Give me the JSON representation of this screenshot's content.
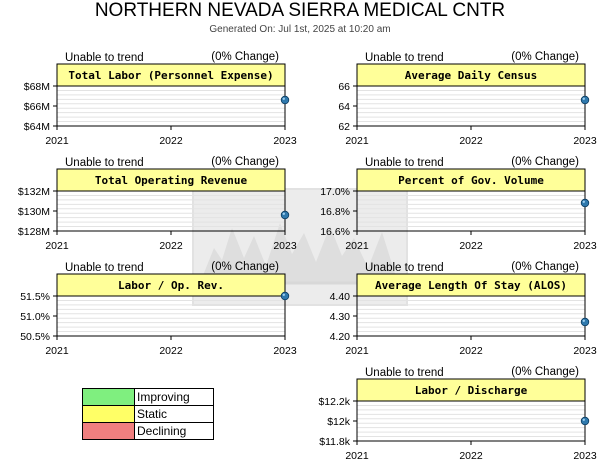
{
  "report": {
    "title": "NORTHERN NEVADA SIERRA MEDICAL CNTR",
    "subtitle": "Generated On: Jul 1st, 2025 at 10:20 am"
  },
  "colors": {
    "panel_fill": "#ffff99",
    "improving": "#7fef7f",
    "static": "#ffff66",
    "declining": "#f07f7f",
    "marker": "#2f79ad"
  },
  "legend": [
    {
      "label": "Improving",
      "color": "#7fef7f"
    },
    {
      "label": "Static",
      "color": "#ffff66"
    },
    {
      "label": "Declining",
      "color": "#f07f7f"
    }
  ],
  "chart_data": [
    {
      "type": "scatter",
      "title": "Total Labor (Personnel Expense)",
      "trend_label": "Unable to trend",
      "change_label": "(0% Change)",
      "x_ticks": [
        "2021",
        "2022",
        "2023"
      ],
      "y_ticks": [
        "$68M",
        "$66M",
        "$64M"
      ],
      "ylim": [
        64,
        68
      ],
      "y_unit": "$M",
      "points": [
        {
          "x": "2023",
          "y": 66.6
        }
      ],
      "grid": true
    },
    {
      "type": "scatter",
      "title": "Average Daily Census",
      "trend_label": "Unable to trend",
      "change_label": "(0% Change)",
      "x_ticks": [
        "2021",
        "2022",
        "2023"
      ],
      "y_ticks": [
        "66",
        "64",
        "62"
      ],
      "ylim": [
        62,
        66
      ],
      "points": [
        {
          "x": "2023",
          "y": 64.6
        }
      ],
      "grid": true
    },
    {
      "type": "scatter",
      "title": "Total Operating Revenue",
      "trend_label": "Unable to trend",
      "change_label": "(0% Change)",
      "x_ticks": [
        "2021",
        "2022",
        "2023"
      ],
      "y_ticks": [
        "$132M",
        "$130M",
        "$128M"
      ],
      "ylim": [
        128,
        132
      ],
      "y_unit": "$M",
      "points": [
        {
          "x": "2023",
          "y": 129.6
        }
      ],
      "grid": true
    },
    {
      "type": "scatter",
      "title": "Percent of Gov. Volume",
      "trend_label": "Unable to trend",
      "change_label": "(0% Change)",
      "x_ticks": [
        "2021",
        "2022",
        "2023"
      ],
      "y_ticks": [
        "17.0%",
        "16.8%",
        "16.6%"
      ],
      "ylim": [
        16.6,
        17.0
      ],
      "y_unit": "%",
      "points": [
        {
          "x": "2023",
          "y": 16.88
        }
      ],
      "grid": true
    },
    {
      "type": "scatter",
      "title": "Labor / Op. Rev.",
      "trend_label": "Unable to trend",
      "change_label": "(0% Change)",
      "x_ticks": [
        "2021",
        "2022",
        "2023"
      ],
      "y_ticks": [
        "51.5%",
        "51.0%",
        "50.5%"
      ],
      "ylim": [
        50.5,
        51.5
      ],
      "y_unit": "%",
      "points": [
        {
          "x": "2023",
          "y": 51.5
        }
      ],
      "grid": true
    },
    {
      "type": "scatter",
      "title": "Average Length Of Stay (ALOS)",
      "trend_label": "Unable to trend",
      "change_label": "(0% Change)",
      "x_ticks": [
        "2021",
        "2022",
        "2023"
      ],
      "y_ticks": [
        "4.40",
        "4.30",
        "4.20"
      ],
      "ylim": [
        4.2,
        4.4
      ],
      "points": [
        {
          "x": "2023",
          "y": 4.27
        }
      ],
      "grid": true
    },
    {
      "type": "scatter",
      "title": "Labor / Discharge",
      "trend_label": "Unable to trend",
      "change_label": "(0% Change)",
      "x_ticks": [
        "2021",
        "2022",
        "2023"
      ],
      "y_ticks": [
        "$12.2k",
        "$12k",
        "$11.8k"
      ],
      "ylim": [
        11.8,
        12.2
      ],
      "y_unit": "$k",
      "points": [
        {
          "x": "2023",
          "y": 12.0
        }
      ],
      "grid": true
    }
  ]
}
